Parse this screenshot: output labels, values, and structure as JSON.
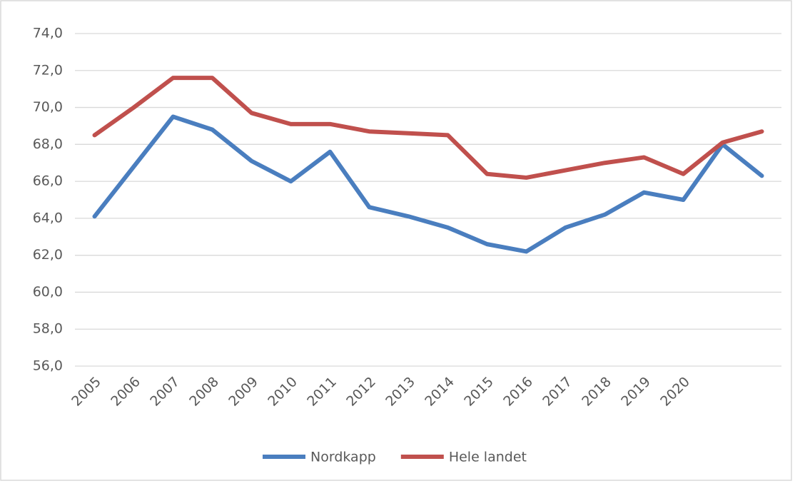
{
  "chart_data": {
    "type": "line",
    "categories": [
      "2005",
      "2006",
      "2007",
      "2008",
      "2009",
      "2010",
      "2011",
      "2012",
      "2013",
      "2014",
      "2015",
      "2016",
      "2017",
      "2018",
      "2019",
      "2020",
      null,
      null
    ],
    "series": [
      {
        "name": "Nordkapp",
        "color": "#4a7ebf",
        "values": [
          64.1,
          66.8,
          69.5,
          68.8,
          67.1,
          66.0,
          67.6,
          64.6,
          64.1,
          63.5,
          62.6,
          62.2,
          63.5,
          64.2,
          65.4,
          65.0,
          68.0,
          66.3
        ]
      },
      {
        "name": "Hele landet",
        "color": "#c0504d",
        "values": [
          68.5,
          70.0,
          71.6,
          71.6,
          69.7,
          69.1,
          69.1,
          68.7,
          68.6,
          68.5,
          66.4,
          66.2,
          66.6,
          67.0,
          67.3,
          66.4,
          68.1,
          68.7
        ]
      }
    ],
    "ylim": [
      56,
      74
    ],
    "yticks": [
      {
        "value": 56,
        "label": "56,0"
      },
      {
        "value": 58,
        "label": "58,0"
      },
      {
        "value": 60,
        "label": "60,0"
      },
      {
        "value": 62,
        "label": "62,0"
      },
      {
        "value": 64,
        "label": "64,0"
      },
      {
        "value": 66,
        "label": "66,0"
      },
      {
        "value": 68,
        "label": "68,0"
      },
      {
        "value": 70,
        "label": "70,0"
      },
      {
        "value": 72,
        "label": "72,0"
      },
      {
        "value": 74,
        "label": "74,0"
      }
    ],
    "grid": true,
    "legend": "bottom"
  }
}
